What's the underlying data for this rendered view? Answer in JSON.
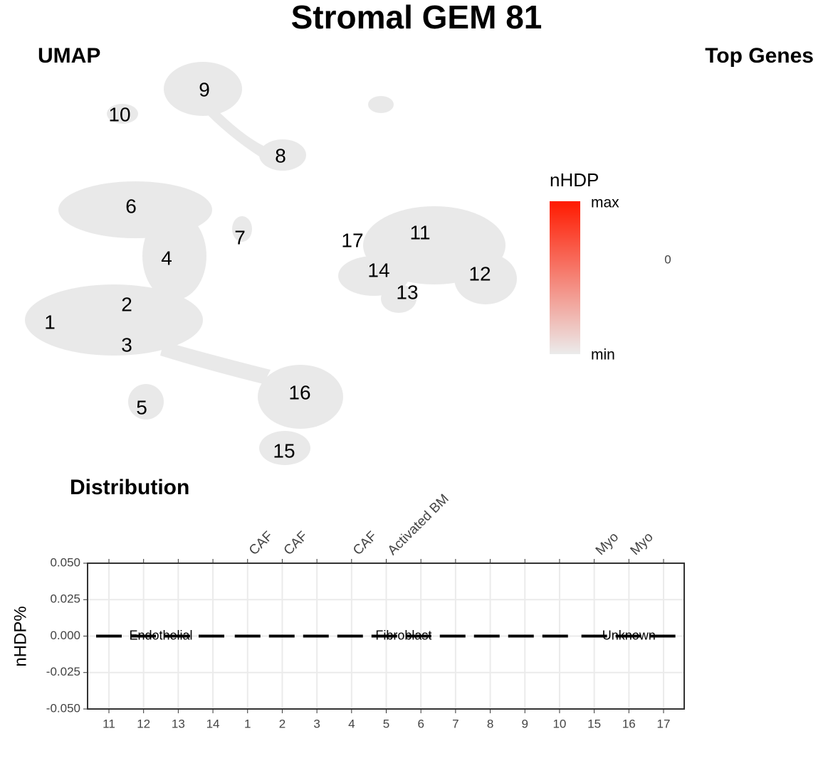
{
  "title": "Stromal GEM 81",
  "umap": {
    "title": "UMAP",
    "cluster_labels": [
      "1",
      "2",
      "3",
      "4",
      "5",
      "6",
      "7",
      "8",
      "9",
      "10",
      "11",
      "12",
      "13",
      "14",
      "15",
      "16",
      "17"
    ],
    "legend": {
      "title": "nHDP",
      "high": "max",
      "low": "min",
      "colors": [
        "#ebebeb",
        "#ff1a00"
      ]
    }
  },
  "top_genes": {
    "title": "Top Genes",
    "values": [
      0
    ]
  },
  "chart_data": {
    "type": "line",
    "title": "Distribution",
    "ylabel": "nHDP%",
    "categories": [
      "11",
      "12",
      "13",
      "14",
      "1",
      "2",
      "3",
      "4",
      "5",
      "6",
      "7",
      "8",
      "9",
      "10",
      "15",
      "16",
      "17"
    ],
    "top_labels": [
      null,
      null,
      null,
      null,
      "CAF",
      "CAF",
      null,
      "CAF",
      "Activated BM",
      null,
      null,
      null,
      null,
      null,
      "Myo",
      "Myo",
      null
    ],
    "series": [
      {
        "name": "Endothelial",
        "color": "#000000",
        "values": [
          0,
          0,
          0,
          0,
          null,
          null,
          null,
          null,
          null,
          null,
          null,
          null,
          null,
          null,
          null,
          null,
          null
        ]
      },
      {
        "name": "Fibroblast",
        "color": "#000000",
        "values": [
          null,
          null,
          null,
          null,
          0,
          0,
          0,
          0,
          0,
          0,
          0,
          0,
          0,
          0,
          null,
          null,
          null
        ]
      },
      {
        "name": "Unknown",
        "color": "#000000",
        "values": [
          null,
          null,
          null,
          null,
          null,
          null,
          null,
          null,
          null,
          null,
          null,
          null,
          null,
          null,
          0,
          0,
          0
        ]
      }
    ],
    "ylim": [
      -0.05,
      0.05
    ],
    "yticks": [
      {
        "value": -0.05,
        "label": "-0.050"
      },
      {
        "value": -0.025,
        "label": "-0.025"
      },
      {
        "value": 0,
        "label": "0.000"
      },
      {
        "value": 0.025,
        "label": "0.025"
      },
      {
        "value": 0.05,
        "label": "0.050"
      }
    ],
    "grid": true
  }
}
